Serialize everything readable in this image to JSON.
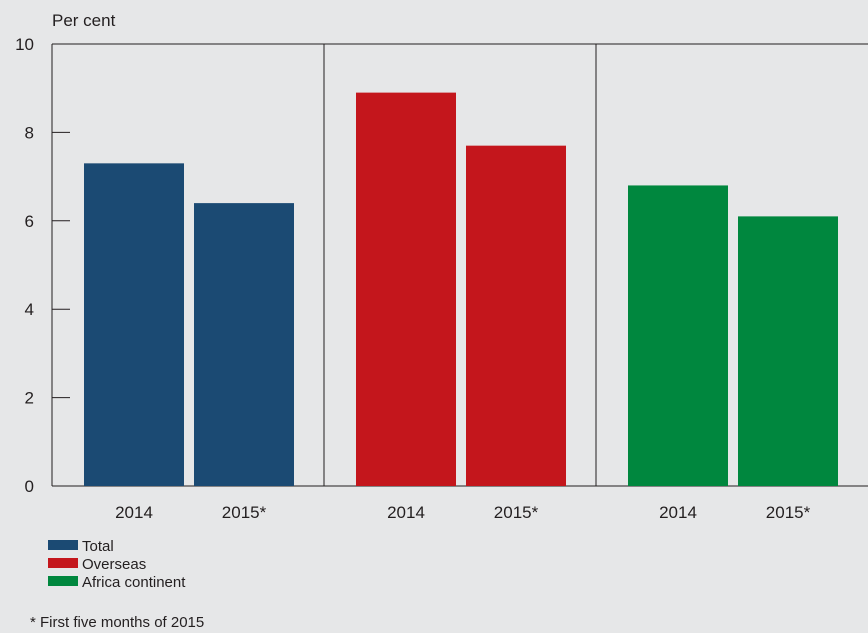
{
  "chart_data": {
    "type": "bar",
    "ylabel": "Per cent",
    "ylim": [
      0,
      10
    ],
    "yticks": [
      "0",
      "2",
      "4",
      "6",
      "8",
      "10"
    ],
    "grid": false,
    "legend_position": "bottom-left",
    "groups": [
      {
        "series": "Total",
        "color": "#1b4a73",
        "categories": [
          "2014",
          "2015*"
        ],
        "values": [
          7.3,
          6.4
        ]
      },
      {
        "series": "Overseas",
        "color": "#c4161c",
        "categories": [
          "2014",
          "2015*"
        ],
        "values": [
          8.9,
          7.7
        ]
      },
      {
        "series": "Africa continent",
        "color": "#00873e",
        "categories": [
          "2014",
          "2015*"
        ],
        "values": [
          6.8,
          6.1
        ]
      }
    ],
    "legend": [
      {
        "label": "Total",
        "color": "#1b4a73"
      },
      {
        "label": "Overseas",
        "color": "#c4161c"
      },
      {
        "label": "Africa continent",
        "color": "#00873e"
      }
    ],
    "footnote": "* First five months of 2015"
  }
}
